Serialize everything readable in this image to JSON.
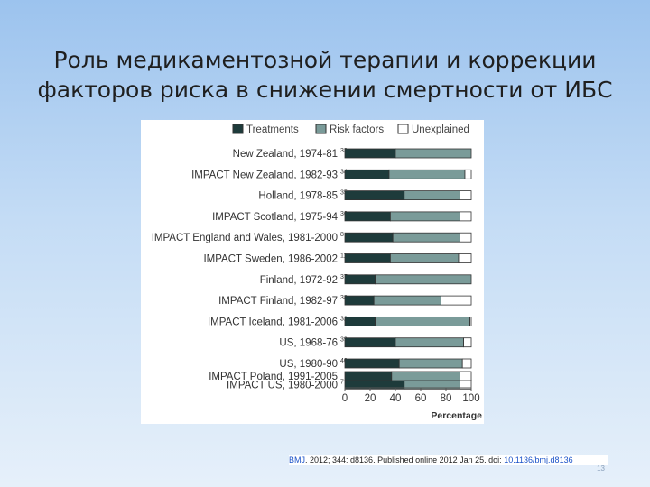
{
  "slide": {
    "title_line1": "Роль медикаментозной терапии и коррекции",
    "title_line2": "факторов риска в снижении смертности от ИБС",
    "page_number": "13"
  },
  "citation": {
    "journal": "BMJ",
    "text": ". 2012; 344: d8136. Published online 2012 Jan 25. doi: ",
    "doi": "10.1136/bmj.d8136"
  },
  "colors": {
    "treatments": "#1e3b3b",
    "risk_factors": "#7a9b99",
    "unexplained": "#ffffff"
  },
  "chart_data": {
    "type": "bar",
    "orientation": "horizontal",
    "stacked": true,
    "title": "",
    "xlabel": "Percentage",
    "ylabel": "",
    "xlim": [
      0,
      100
    ],
    "xticks": [
      0,
      20,
      40,
      60,
      80,
      100
    ],
    "legend_position": "top",
    "grid": false,
    "categories": [
      {
        "name": "New Zealand, 1974-81",
        "ref": "33"
      },
      {
        "name": "IMPACT New Zealand, 1982-93",
        "ref": "34"
      },
      {
        "name": "Holland, 1978-85",
        "ref": "35"
      },
      {
        "name": "IMPACT Scotland, 1975-94",
        "ref": "36"
      },
      {
        "name": "IMPACT England and Wales, 1981-2000",
        "ref": "8"
      },
      {
        "name": "IMPACT Sweden, 1986-2002",
        "ref": "11"
      },
      {
        "name": "Finland, 1972-92",
        "ref": "37"
      },
      {
        "name": "IMPACT Finland, 1982-97",
        "ref": "38"
      },
      {
        "name": "IMPACT Iceland, 1981-2006",
        "ref": "32"
      },
      {
        "name": "US, 1968-76",
        "ref": "39"
      },
      {
        "name": "US, 1980-90",
        "ref": "40"
      },
      {
        "name": "IMPACT US, 1980-2000",
        "ref": "7"
      },
      {
        "name": "IMPACT Poland, 1991-2005",
        "ref": ""
      }
    ],
    "series": [
      {
        "name": "Treatments",
        "values": [
          40,
          35,
          47,
          36,
          38,
          36,
          24,
          23,
          24,
          40,
          43,
          47,
          37
        ]
      },
      {
        "name": "Risk factors",
        "values": [
          60,
          60,
          44,
          55,
          53,
          54,
          76,
          53,
          75,
          54,
          50,
          44,
          54
        ]
      },
      {
        "name": "Unexplained",
        "values": [
          0,
          5,
          9,
          9,
          9,
          10,
          0,
          24,
          1,
          6,
          7,
          9,
          9
        ]
      }
    ]
  }
}
